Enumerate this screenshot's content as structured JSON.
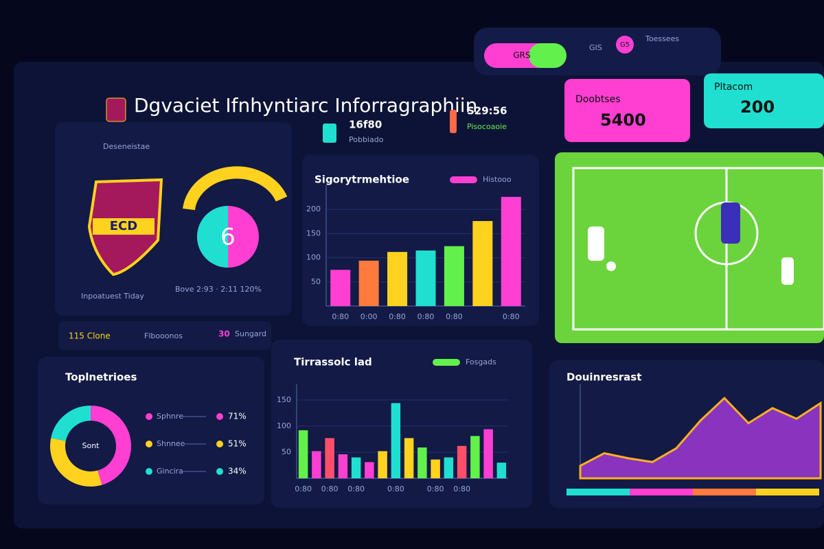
{
  "header": {
    "title": "Dgvaciet Ifnhyntiarc Inforragraphiin"
  },
  "stats": [
    {
      "value": "16f80",
      "label": "Pobbiado"
    },
    {
      "value": "S29:56",
      "label": "Pisocoaoie"
    }
  ],
  "pills": [
    "GRS",
    "GIS",
    "G5",
    "Toessees"
  ],
  "cards": [
    {
      "label": "Doobtses",
      "value": "5400"
    },
    {
      "label": "Pltacom",
      "value": "200"
    }
  ],
  "club": {
    "section": "Deseneistae",
    "crest": "ECD",
    "caption": "Inpoatuest Tiday",
    "gauge": "6",
    "gauge_caption": "Bove 2:93 · 2:11 120%"
  },
  "ticker": [
    "115 Clone",
    "Flbooonos",
    "30",
    "Sungard"
  ],
  "chart_data": [
    {
      "type": "bar",
      "title": "Sigorytrmehtioe",
      "legend": "Histooo",
      "categories": [
        "0:80",
        "0:00",
        "0:80",
        "0:80",
        "0:80",
        null,
        "0:80"
      ],
      "values": [
        75,
        94,
        112,
        115,
        124,
        176,
        226
      ],
      "colors": [
        "#ff3fd2",
        "#ff7a3d",
        "#ffd21f",
        "#1fe0d0",
        "#62f04a",
        "#ffd21f",
        "#ff3fd2"
      ],
      "ylim": [
        0,
        250
      ],
      "yticks": [
        50,
        100,
        150,
        200
      ]
    },
    {
      "type": "bar",
      "title": "Tirrassolc lad",
      "legend": "Fosgads",
      "categories": [
        "0:80",
        null,
        "0:80",
        null,
        "0:80",
        null,
        null,
        "0:80",
        null,
        null,
        "0:80",
        null,
        "0:80",
        null,
        null,
        null
      ],
      "values": [
        92,
        52,
        77,
        46,
        40,
        31,
        52,
        144,
        77,
        59,
        36,
        40,
        62,
        81,
        94,
        30
      ],
      "colors": [
        "#62f04a",
        "#ff3fd2",
        "#ff4f6a",
        "#ff3fd2",
        "#1fe0d0",
        "#ff3fd2",
        "#ffd21f",
        "#1fe0d0",
        "#ffd21f",
        "#62f04a",
        "#ffd21f",
        "#1fe0d0",
        "#ff4f6a",
        "#62f04a",
        "#ff3fd2",
        "#1fe0d0"
      ],
      "ylim": [
        0,
        180
      ],
      "yticks": [
        50,
        100,
        150
      ]
    },
    {
      "type": "pie",
      "title": "Toplnetrioes",
      "center": "Sont",
      "categories": [
        "Sphnre",
        "Shnnee",
        "Gincira"
      ],
      "values": [
        71,
        51,
        34
      ],
      "value_labels": [
        "71%",
        "51%",
        "34%"
      ],
      "colors": [
        "#ff3fd2",
        "#ffd21f",
        "#1fe0d0"
      ]
    },
    {
      "type": "area",
      "title": "Douinresrast",
      "values": [
        20,
        40,
        32,
        26,
        48,
        92,
        128,
        88,
        112,
        95,
        120
      ],
      "color": "#b23ee8",
      "ylim": [
        0,
        150
      ]
    }
  ]
}
